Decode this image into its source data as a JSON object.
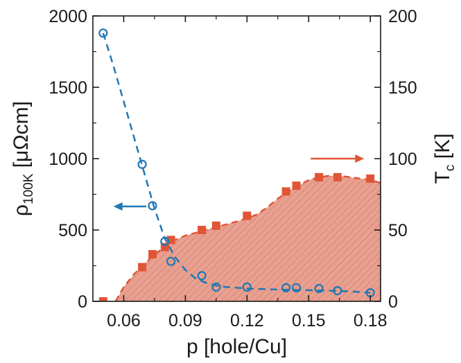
{
  "chart_data": {
    "type": "scatter",
    "xlabel": "p [hole/Cu]",
    "ylabel_left": {
      "main": "ρ",
      "sub": "100K",
      "unit": " [μΩcm]"
    },
    "ylabel_right": {
      "main": "T",
      "sub": "c",
      "unit": " [K]"
    },
    "xlim": [
      0.045,
      0.185
    ],
    "ylim_left": [
      0,
      2000
    ],
    "ylim_right": [
      0,
      200
    ],
    "xticks": [
      0.06,
      0.09,
      0.12,
      0.15,
      0.18
    ],
    "xtick_labels": [
      "0.06",
      "0.09",
      "0.12",
      "0.15",
      "0.18"
    ],
    "yticks_left": [
      0,
      500,
      1000,
      1500,
      2000
    ],
    "ytick_labels_left": [
      "0",
      "500",
      "1000",
      "1500",
      "2000"
    ],
    "yticks_right": [
      0,
      50,
      100,
      150,
      200
    ],
    "ytick_labels_right": [
      "0",
      "50",
      "100",
      "150",
      "200"
    ],
    "grid": false,
    "legend": "none",
    "series": [
      {
        "axis": "left",
        "marker": "open-circle",
        "color": "#1f77b4",
        "x": [
          0.05,
          0.069,
          0.074,
          0.08,
          0.083,
          0.098,
          0.105,
          0.12,
          0.139,
          0.144,
          0.155,
          0.164,
          0.18
        ],
        "y": [
          1880,
          960,
          670,
          420,
          280,
          180,
          100,
          100,
          95,
          95,
          90,
          75,
          60
        ]
      },
      {
        "axis": "right",
        "marker": "filled-square",
        "color": "#e05535",
        "x": [
          0.05,
          0.069,
          0.074,
          0.08,
          0.083,
          0.098,
          0.105,
          0.12,
          0.139,
          0.144,
          0.155,
          0.164,
          0.18
        ],
        "y": [
          0,
          24,
          33,
          38,
          43,
          50,
          53,
          60,
          77,
          81,
          87,
          87,
          86
        ]
      }
    ],
    "fit_left": {
      "color": "#1f77b4",
      "x": [
        0.05,
        0.055,
        0.06,
        0.065,
        0.07,
        0.075,
        0.08,
        0.085,
        0.09,
        0.095,
        0.1,
        0.105,
        0.11,
        0.115,
        0.12,
        0.13,
        0.14,
        0.15,
        0.16,
        0.17,
        0.18
      ],
      "y": [
        1880,
        1650,
        1400,
        1150,
        900,
        650,
        440,
        310,
        220,
        160,
        130,
        110,
        100,
        95,
        90,
        85,
        80,
        78,
        75,
        70,
        60
      ]
    },
    "fit_right": {
      "color": "#e05535",
      "fill": "#e8a090",
      "x": [
        0.056,
        0.06,
        0.065,
        0.07,
        0.075,
        0.08,
        0.085,
        0.09,
        0.095,
        0.1,
        0.105,
        0.11,
        0.115,
        0.12,
        0.125,
        0.13,
        0.135,
        0.14,
        0.145,
        0.15,
        0.155,
        0.16,
        0.165,
        0.17,
        0.175,
        0.18,
        0.185
      ],
      "y": [
        0,
        10,
        19,
        26,
        33,
        38,
        43,
        46,
        48,
        50,
        52,
        54,
        56,
        58,
        61,
        66,
        72,
        77,
        81,
        85,
        87,
        88,
        88,
        87,
        86,
        85,
        83
      ]
    },
    "arrows": [
      {
        "points_to": "left",
        "color": "#1f77b4",
        "x": [
          0.071,
          0.055
        ],
        "y_left": 665
      },
      {
        "points_to": "right",
        "color": "#e05535",
        "x": [
          0.151,
          0.177
        ],
        "y_left": 1000
      }
    ]
  }
}
